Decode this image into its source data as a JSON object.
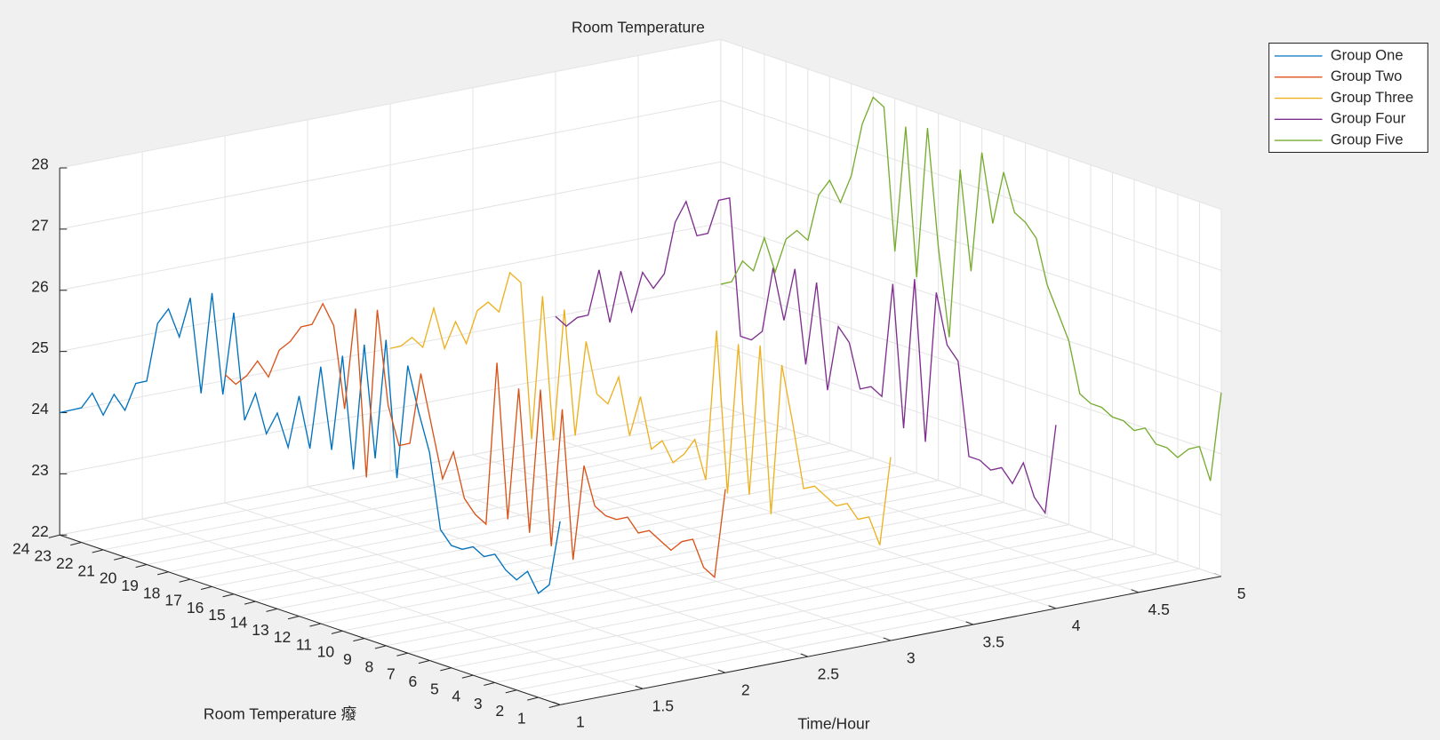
{
  "chart_data": {
    "type": "line3d",
    "title": "Room Temperature",
    "xlabel": "Time/Hour",
    "ylabel": "Room Temperature 癈",
    "xlim": [
      1,
      5
    ],
    "ylim": [
      1,
      24
    ],
    "zlim": [
      22,
      28
    ],
    "xticks": [
      1,
      1.5,
      2,
      2.5,
      3,
      3.5,
      4,
      4.5,
      5
    ],
    "yticks": [
      1,
      2,
      3,
      4,
      5,
      6,
      7,
      8,
      9,
      10,
      11,
      12,
      13,
      14,
      15,
      16,
      17,
      18,
      19,
      20,
      21,
      22,
      23,
      24
    ],
    "zticks": [
      22,
      23,
      24,
      25,
      26,
      27,
      28
    ],
    "grid": true,
    "legend_position": "northeast-outside",
    "y": [
      24,
      23.5,
      23,
      22.5,
      22,
      21.5,
      21,
      20.5,
      20,
      19.5,
      19,
      18.5,
      18,
      17.5,
      17,
      16.5,
      16,
      15.5,
      15,
      14.5,
      14,
      13.5,
      13,
      12.5,
      12,
      11.5,
      11,
      10.5,
      10,
      9.5,
      9,
      8.5,
      8,
      7.5,
      7,
      6.5,
      6,
      5.5,
      5,
      4.5,
      4,
      3.5,
      3,
      2.5,
      2,
      1.5,
      1
    ],
    "series": [
      {
        "name": "Group One",
        "color": "#0072BD",
        "x": 1,
        "values": [
          24,
          24.1,
          24.2,
          24.5,
          24.2,
          24.6,
          24.4,
          24.9,
          25.0,
          26.0,
          26.3,
          25.9,
          26.6,
          25.1,
          26.8,
          25.2,
          26.6,
          24.9,
          25.4,
          24.8,
          25.2,
          24.7,
          25.6,
          24.8,
          26.2,
          24.9,
          26.5,
          24.7,
          26.8,
          25.0,
          27.0,
          24.8,
          26.7,
          26.0,
          25.4,
          24.2,
          24.0,
          24.0,
          24.1,
          24.0,
          24.1,
          23.9,
          23.8,
          24.0,
          23.7,
          23.9,
          25.0
        ]
      },
      {
        "name": "Group Two",
        "color": "#D95319",
        "x": 2,
        "values": [
          24.1,
          24.0,
          24.2,
          24.5,
          24.3,
          24.8,
          25.0,
          25.3,
          25.4,
          25.8,
          25.5,
          24.2,
          25.9,
          23.2,
          26.0,
          24.5,
          23.9,
          24.0,
          25.2,
          24.4,
          23.6,
          24.1,
          23.4,
          23.2,
          23.1,
          25.8,
          23.3,
          25.5,
          23.2,
          25.6,
          23.1,
          25.4,
          23.0,
          24.6,
          24.0,
          23.9,
          23.9,
          24.0,
          23.8,
          23.9,
          23.8,
          23.7,
          23.9,
          24.0,
          23.6,
          23.5,
          25.0
        ]
      },
      {
        "name": "Group Three",
        "color": "#EDB120",
        "x": 3,
        "values": [
          24.0,
          24.1,
          24.3,
          24.2,
          24.9,
          24.3,
          24.8,
          24.5,
          25.1,
          25.3,
          25.2,
          25.9,
          25.8,
          23.3,
          25.7,
          23.4,
          25.6,
          23.6,
          25.2,
          24.4,
          24.3,
          24.8,
          23.9,
          24.6,
          23.8,
          24.0,
          23.7,
          23.9,
          24.2,
          23.6,
          26.1,
          23.5,
          26.0,
          23.6,
          26.1,
          23.4,
          25.9,
          25.0,
          24.0,
          24.1,
          24.0,
          23.9,
          24.0,
          23.8,
          23.9,
          23.5,
          25.0
        ]
      },
      {
        "name": "Group Four",
        "color": "#7E2F8E",
        "x": 4,
        "values": [
          24.0,
          23.9,
          24.1,
          24.2,
          25.0,
          24.2,
          25.1,
          24.5,
          25.2,
          25.0,
          25.3,
          26.2,
          26.6,
          26.1,
          26.2,
          26.8,
          26.9,
          24.7,
          24.7,
          24.9,
          26.0,
          25.2,
          26.1,
          24.6,
          26.0,
          24.3,
          25.4,
          25.2,
          24.5,
          24.6,
          24.5,
          26.4,
          24.1,
          26.6,
          24.0,
          26.5,
          25.7,
          25.5,
          24.0,
          24.0,
          23.9,
          24.0,
          23.8,
          24.2,
          23.7,
          23.5,
          25.0
        ]
      },
      {
        "name": "Group Five",
        "color": "#77AC30",
        "x": 5,
        "values": [
          24.0,
          24.1,
          24.5,
          24.4,
          25.0,
          24.5,
          25.1,
          25.3,
          25.2,
          26.0,
          26.3,
          26.0,
          26.5,
          27.4,
          27.9,
          27.8,
          25.5,
          27.6,
          25.2,
          27.7,
          25.8,
          24.4,
          27.2,
          25.6,
          27.6,
          26.5,
          27.4,
          26.8,
          26.7,
          26.5,
          25.8,
          25.4,
          25.0,
          24.2,
          24.1,
          24.1,
          24.0,
          24.0,
          23.9,
          24.0,
          23.8,
          23.8,
          23.7,
          23.9,
          24.0,
          23.5,
          25.0
        ]
      }
    ]
  }
}
